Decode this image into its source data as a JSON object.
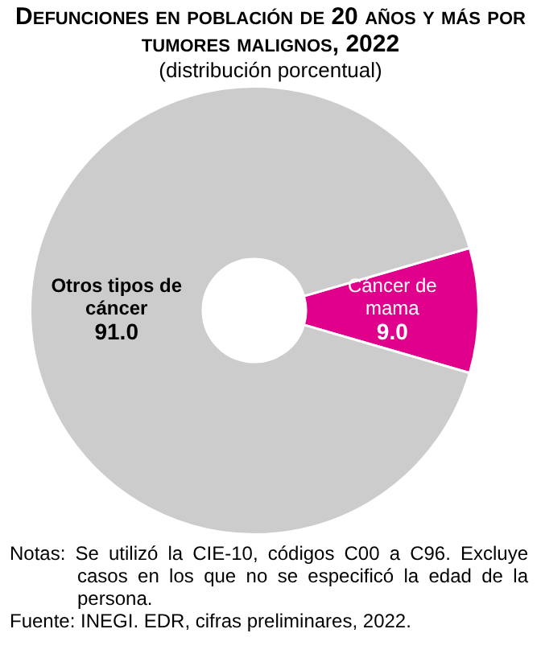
{
  "chart_data": {
    "type": "donut",
    "title": "Defunciones en población de 20 años y más por tumores malignos, 2022",
    "subtitle": "(distribución porcentual)",
    "categories": [
      "Cáncer de mama",
      "Otros tipos de cáncer"
    ],
    "values": [
      9.0,
      91.0
    ],
    "colors": [
      "#e0008c",
      "#cccccc"
    ],
    "value_labels": [
      "9.0",
      "91.0"
    ],
    "legend": false,
    "annotations": [
      "Notas: Se utilizó la CIE-10, códigos C00 a C96. Excluye casos en los que no se especificó la edad de la persona.",
      "Fuente: INEGI. EDR, cifras preliminares, 2022."
    ]
  }
}
